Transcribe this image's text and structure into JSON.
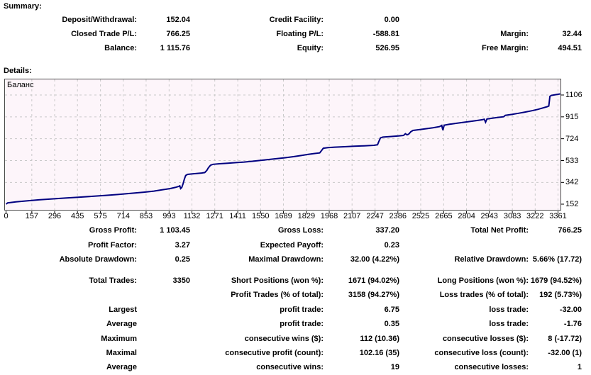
{
  "titles": {
    "summary": "Summary:",
    "details": "Details:"
  },
  "summary_rows": [
    [
      "Deposit/Withdrawal:",
      "152.04",
      "Credit Facility:",
      "0.00",
      "",
      ""
    ],
    [
      "Closed Trade P/L:",
      "766.25",
      "Floating P/L:",
      "-588.81",
      "Margin:",
      "32.44"
    ],
    [
      "Balance:",
      "1 115.76",
      "Equity:",
      "526.95",
      "Free Margin:",
      "494.51"
    ]
  ],
  "stats_rows_a": [
    [
      "Gross Profit:",
      "1 103.45",
      "Gross Loss:",
      "337.20",
      "Total Net Profit:",
      "766.25"
    ],
    [
      "Profit Factor:",
      "3.27",
      "Expected Payoff:",
      "0.23",
      "",
      ""
    ],
    [
      "Absolute Drawdown:",
      "0.25",
      "Maximal Drawdown:",
      "32.00 (4.22%)",
      "Relative Drawdown:",
      "5.66% (17.72)"
    ]
  ],
  "stats_rows_b": [
    [
      "Total Trades:",
      "3350",
      "Short Positions (won %):",
      "1671 (94.02%)",
      "Long Positions (won %):",
      "1679 (94.52%)"
    ],
    [
      "",
      "",
      "Profit Trades (% of total):",
      "3158 (94.27%)",
      "Loss trades (% of total):",
      "192 (5.73%)"
    ],
    [
      "Largest",
      "",
      "profit trade:",
      "6.75",
      "loss trade:",
      "-32.00"
    ],
    [
      "Average",
      "",
      "profit trade:",
      "0.35",
      "loss trade:",
      "-1.76"
    ],
    [
      "Maximum",
      "",
      "consecutive wins ($):",
      "112 (10.36)",
      "consecutive losses ($):",
      "8 (-17.72)"
    ],
    [
      "Maximal",
      "",
      "consecutive profit (count):",
      "102.16 (35)",
      "consecutive loss (count):",
      "-32.00 (1)"
    ],
    [
      "Average",
      "",
      "consecutive wins:",
      "19",
      "consecutive losses:",
      "1"
    ]
  ],
  "chart_data": {
    "type": "line",
    "title": "Баланс",
    "xlabel": "",
    "ylabel": "",
    "xlim": [
      0,
      3374
    ],
    "ylim": [
      152,
      1115.76
    ],
    "x_ticks": [
      0,
      157,
      296,
      435,
      575,
      714,
      853,
      993,
      1132,
      1271,
      1411,
      1550,
      1689,
      1829,
      1968,
      2107,
      2247,
      2386,
      2525,
      2665,
      2804,
      2943,
      3083,
      3222,
      3361
    ],
    "y_ticks": [
      152,
      342,
      533,
      724,
      915,
      1106
    ],
    "grid": "dashed",
    "legend_position": "top-left-inside",
    "line_color": "#000080",
    "plot_bg": "#fdf5fa",
    "grid_color": "#c9c9c9",
    "border_color": "#4a4a4a",
    "series": [
      {
        "name": "Баланс",
        "points": [
          [
            0,
            152
          ],
          [
            10,
            163
          ],
          [
            60,
            172
          ],
          [
            120,
            180
          ],
          [
            200,
            190
          ],
          [
            280,
            198
          ],
          [
            360,
            205
          ],
          [
            440,
            212
          ],
          [
            520,
            220
          ],
          [
            600,
            228
          ],
          [
            680,
            236
          ],
          [
            760,
            246
          ],
          [
            840,
            257
          ],
          [
            900,
            266
          ],
          [
            950,
            277
          ],
          [
            1000,
            288
          ],
          [
            1030,
            298
          ],
          [
            1050,
            306
          ],
          [
            1058,
            312
          ],
          [
            1063,
            288
          ],
          [
            1070,
            298
          ],
          [
            1078,
            330
          ],
          [
            1086,
            372
          ],
          [
            1094,
            402
          ],
          [
            1105,
            412
          ],
          [
            1130,
            416
          ],
          [
            1160,
            420
          ],
          [
            1190,
            424
          ],
          [
            1210,
            428
          ],
          [
            1222,
            446
          ],
          [
            1232,
            470
          ],
          [
            1245,
            492
          ],
          [
            1260,
            500
          ],
          [
            1300,
            505
          ],
          [
            1350,
            510
          ],
          [
            1400,
            515
          ],
          [
            1450,
            520
          ],
          [
            1500,
            527
          ],
          [
            1550,
            535
          ],
          [
            1600,
            542
          ],
          [
            1650,
            550
          ],
          [
            1700,
            558
          ],
          [
            1750,
            567
          ],
          [
            1800,
            578
          ],
          [
            1840,
            587
          ],
          [
            1880,
            595
          ],
          [
            1910,
            600
          ],
          [
            1922,
            622
          ],
          [
            1932,
            641
          ],
          [
            1960,
            646
          ],
          [
            2000,
            650
          ],
          [
            2060,
            654
          ],
          [
            2120,
            658
          ],
          [
            2180,
            662
          ],
          [
            2240,
            666
          ],
          [
            2262,
            671
          ],
          [
            2270,
            700
          ],
          [
            2280,
            731
          ],
          [
            2295,
            738
          ],
          [
            2340,
            743
          ],
          [
            2390,
            748
          ],
          [
            2420,
            752
          ],
          [
            2432,
            768
          ],
          [
            2442,
            758
          ],
          [
            2452,
            764
          ],
          [
            2465,
            785
          ],
          [
            2478,
            796
          ],
          [
            2520,
            804
          ],
          [
            2560,
            812
          ],
          [
            2600,
            820
          ],
          [
            2640,
            830
          ],
          [
            2653,
            840
          ],
          [
            2660,
            799
          ],
          [
            2668,
            842
          ],
          [
            2700,
            850
          ],
          [
            2740,
            858
          ],
          [
            2780,
            866
          ],
          [
            2820,
            874
          ],
          [
            2860,
            882
          ],
          [
            2900,
            890
          ],
          [
            2912,
            894
          ],
          [
            2920,
            868
          ],
          [
            2928,
            896
          ],
          [
            2960,
            903
          ],
          [
            3000,
            911
          ],
          [
            3030,
            916
          ],
          [
            3040,
            928
          ],
          [
            3080,
            936
          ],
          [
            3120,
            946
          ],
          [
            3160,
            957
          ],
          [
            3200,
            968
          ],
          [
            3240,
            981
          ],
          [
            3270,
            993
          ],
          [
            3295,
            1004
          ],
          [
            3305,
            1010
          ],
          [
            3312,
            1094
          ],
          [
            3320,
            1102
          ],
          [
            3335,
            1106
          ],
          [
            3374,
            1115
          ]
        ]
      }
    ]
  }
}
